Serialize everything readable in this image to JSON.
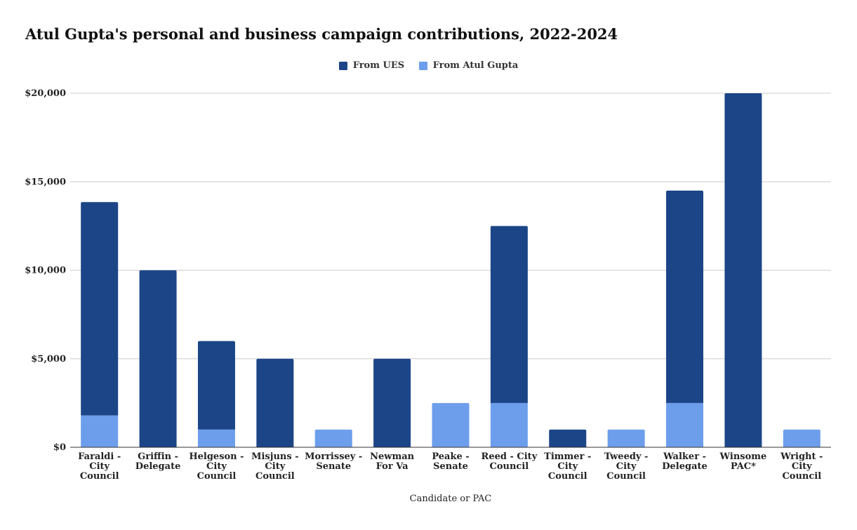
{
  "chart_data": {
    "type": "bar",
    "stacked": true,
    "title": "Atul Gupta's personal and business campaign contributions, 2022-2024",
    "xlabel": "Candidate or PAC",
    "ylabel": "",
    "ylim": [
      0,
      20000
    ],
    "yticks": [
      0,
      5000,
      10000,
      15000,
      20000
    ],
    "ytick_labels": [
      "$0",
      "$5,000",
      "$10,000",
      "$15,000",
      "$20,000"
    ],
    "grid": true,
    "legend_position": "top-center",
    "categories": [
      "Faraldi - City Council",
      "Griffin - Delegate",
      "Helgeson - City Council",
      "Misjuns - City Council",
      "Morrissey - Senate",
      "Newman For Va",
      "Peake - Senate",
      "Reed - City Council",
      "Timmer - City Council",
      "Tweedy - City Council",
      "Walker - Delegate",
      "Winsome PAC*",
      "Wright - City Council"
    ],
    "category_label_lines": [
      [
        "Faraldi -",
        "City",
        "Council"
      ],
      [
        "Griffin -",
        "Delegate"
      ],
      [
        "Helgeson -",
        "City",
        "Council"
      ],
      [
        "Misjuns -",
        "City",
        "Council"
      ],
      [
        "Morrissey -",
        "Senate"
      ],
      [
        "Newman",
        "For Va"
      ],
      [
        "Peake -",
        "Senate"
      ],
      [
        "Reed - City",
        "Council"
      ],
      [
        "Timmer -",
        "City",
        "Council"
      ],
      [
        "Tweedy -",
        "City",
        "Council"
      ],
      [
        "Walker -",
        "Delegate"
      ],
      [
        "Winsome",
        "PAC*"
      ],
      [
        "Wright -",
        "City",
        "Council"
      ]
    ],
    "series": [
      {
        "name": "From Atul Gupta",
        "color": "#6d9eeb",
        "values": [
          1800,
          0,
          1000,
          0,
          1000,
          0,
          2500,
          2500,
          0,
          1000,
          2500,
          0,
          1000
        ]
      },
      {
        "name": "From UES",
        "color": "#1c4587",
        "values": [
          12050,
          10000,
          5000,
          5000,
          0,
          5000,
          0,
          10000,
          1000,
          0,
          12000,
          20000,
          0
        ]
      }
    ],
    "legend_order": [
      "From UES",
      "From Atul Gupta"
    ]
  }
}
